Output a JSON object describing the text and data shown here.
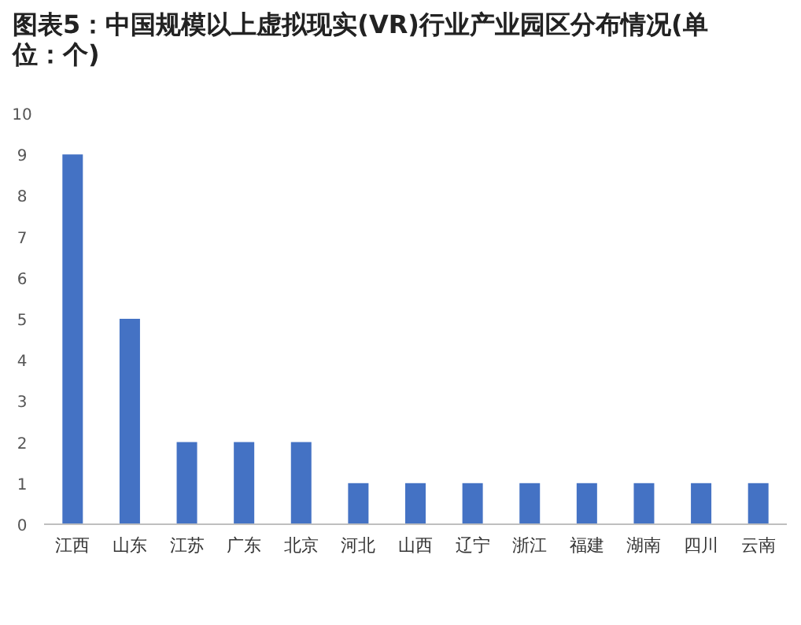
{
  "chart_data": {
    "type": "bar",
    "title": "图表5：中国规模以上虚拟现实(VR)行业产业园区分布情况(单位：个)",
    "categories": [
      "江西",
      "山东",
      "江苏",
      "广东",
      "北京",
      "河北",
      "山西",
      "辽宁",
      "浙江",
      "福建",
      "湖南",
      "四川",
      "云南"
    ],
    "values": [
      9,
      5,
      2,
      2,
      2,
      1,
      1,
      1,
      1,
      1,
      1,
      1,
      1
    ],
    "color": "#4472c4",
    "ylim": [
      0,
      10
    ],
    "yticks": [
      0,
      1,
      2,
      3,
      4,
      5,
      6,
      7,
      8,
      9,
      10
    ],
    "grid": false
  }
}
